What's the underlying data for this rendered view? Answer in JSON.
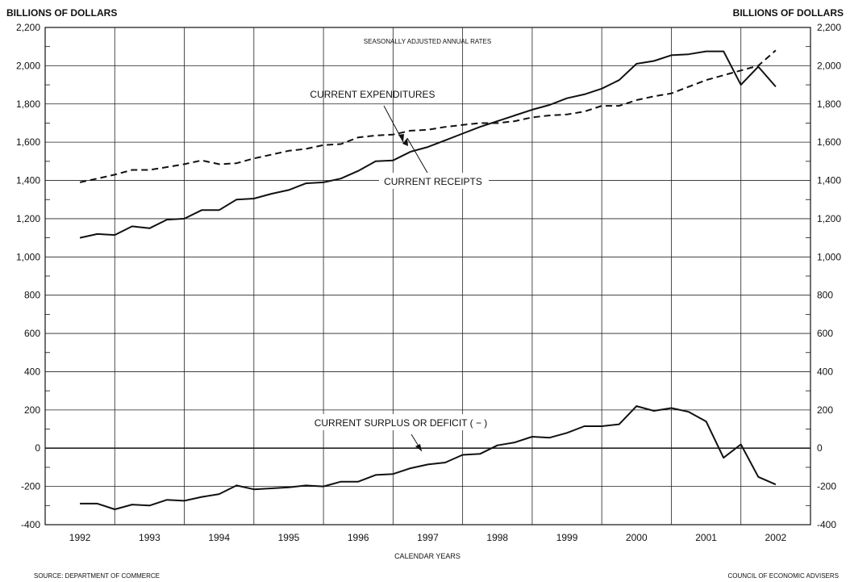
{
  "chart_data": {
    "type": "line",
    "y_unit_left": "BILLIONS OF DOLLARS",
    "y_unit_right": "BILLIONS OF DOLLARS",
    "subtitle": "SEASONALLY ADJUSTED ANNUAL RATES",
    "xlabel": "CALENDAR YEARS",
    "source": "SOURCE: DEPARTMENT OF COMMERCE",
    "credit": "COUNCIL OF ECONOMIC ADVISERS",
    "ylim": [
      -400,
      2200
    ],
    "xlim": [
      1991.5,
      2002.5
    ],
    "yticks": [
      -400,
      -200,
      0,
      200,
      400,
      600,
      800,
      1000,
      1200,
      1400,
      1600,
      1800,
      2000,
      2200
    ],
    "ytick_labels": [
      "-400",
      "-200",
      "0",
      "200",
      "400",
      "600",
      "800",
      "1,000",
      "1,200",
      "1,400",
      "1,600",
      "1,800",
      "2,000",
      "2,200"
    ],
    "years": [
      "1992",
      "1993",
      "1994",
      "1995",
      "1996",
      "1997",
      "1998",
      "1999",
      "2000",
      "2001",
      "2002"
    ],
    "grid": true,
    "annotations": [
      {
        "text": "CURRENT EXPENDITURES",
        "target": "Current expenditures"
      },
      {
        "text": "CURRENT RECEIPTS",
        "target": "Current receipts"
      },
      {
        "text": "CURRENT SURPLUS OR DEFICIT ( − )",
        "target": "Current surplus or deficit"
      }
    ],
    "x": [
      1992.0,
      1992.25,
      1992.5,
      1992.75,
      1993.0,
      1993.25,
      1993.5,
      1993.75,
      1994.0,
      1994.25,
      1994.5,
      1994.75,
      1995.0,
      1995.25,
      1995.5,
      1995.75,
      1996.0,
      1996.25,
      1996.5,
      1996.75,
      1997.0,
      1997.25,
      1997.5,
      1997.75,
      1998.0,
      1998.25,
      1998.5,
      1998.75,
      1999.0,
      1999.25,
      1999.5,
      1999.75,
      2000.0,
      2000.25,
      2000.5,
      2000.75,
      2001.0,
      2001.25,
      2001.5,
      2001.75,
      2002.0
    ],
    "series": [
      {
        "name": "Current receipts",
        "style": "solid",
        "values": [
          1100,
          1120,
          1115,
          1160,
          1150,
          1195,
          1200,
          1245,
          1245,
          1300,
          1305,
          1330,
          1350,
          1385,
          1390,
          1410,
          1450,
          1500,
          1505,
          1550,
          1575,
          1610,
          1645,
          1680,
          1710,
          1740,
          1770,
          1795,
          1830,
          1850,
          1880,
          1925,
          2010,
          2025,
          2055,
          2060,
          2075,
          2075,
          1900,
          1995,
          1890
        ]
      },
      {
        "name": "Current expenditures",
        "style": "dashed",
        "values": [
          1390,
          1410,
          1430,
          1455,
          1455,
          1470,
          1485,
          1505,
          1485,
          1490,
          1515,
          1535,
          1555,
          1565,
          1585,
          1590,
          1625,
          1635,
          1640,
          1660,
          1665,
          1680,
          1690,
          1700,
          1700,
          1710,
          1730,
          1740,
          1745,
          1760,
          1790,
          1790,
          1820,
          1840,
          1855,
          1890,
          1925,
          1950,
          1975,
          2000,
          2080
        ]
      },
      {
        "name": "Current surplus or deficit",
        "style": "solid",
        "values": [
          -290,
          -290,
          -320,
          -295,
          -300,
          -270,
          -275,
          -255,
          -240,
          -195,
          -215,
          -210,
          -205,
          -195,
          -200,
          -175,
          -175,
          -140,
          -135,
          -105,
          -85,
          -75,
          -35,
          -30,
          15,
          30,
          60,
          55,
          80,
          115,
          115,
          125,
          220,
          195,
          210,
          190,
          140,
          -50,
          20,
          -150,
          -190
        ]
      }
    ],
    "styles": {
      "line_color": "#111111",
      "grid_color": "#222222",
      "background": "#ffffff"
    }
  }
}
